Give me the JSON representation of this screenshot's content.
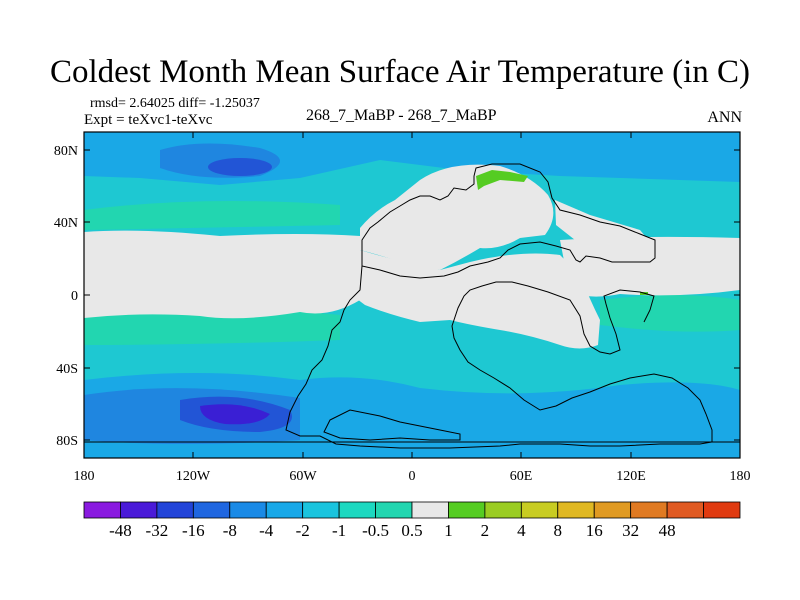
{
  "title": "Coldest Month Mean Surface Air Temperature (in C)",
  "stats_line": "rmsd= 2.64025 diff= -1.25037",
  "expt_line": "Expt = teXvc1-teXvc",
  "center_line": "268_7_MaBP - 268_7_MaBP",
  "season": "ANN",
  "colors": {
    "neutral": "#e8e8e8",
    "light_cyan": "#22d6b0",
    "cyan": "#1ec8d2",
    "blue_light": "#1aa8e6",
    "blue": "#1f86e0",
    "deep_blue": "#2255d6",
    "purple": "#3a1fd4",
    "green": "#55cc22"
  },
  "map": {
    "x_ticks": [
      "180",
      "120W",
      "60W",
      "0",
      "60E",
      "120E",
      "180"
    ],
    "y_ticks": [
      "80N",
      "40N",
      "0",
      "40S",
      "80S"
    ]
  },
  "colorbar": {
    "labels": [
      "-48",
      "-32",
      "-16",
      "-8",
      "-4",
      "-2",
      "-1",
      "-0.5",
      "0.5",
      "1",
      "2",
      "4",
      "8",
      "16",
      "32",
      "48"
    ],
    "colors": [
      "#8a1ae0",
      "#4a1ad8",
      "#2244d8",
      "#1f66e0",
      "#1a8ae6",
      "#18a8e8",
      "#1ac4de",
      "#1cd8c0",
      "#22d6b0",
      "#e8e8e8",
      "#55cc22",
      "#9acc22",
      "#c8cc22",
      "#e0b822",
      "#e09a22",
      "#e07a22",
      "#e05a22",
      "#e03a10"
    ]
  }
}
